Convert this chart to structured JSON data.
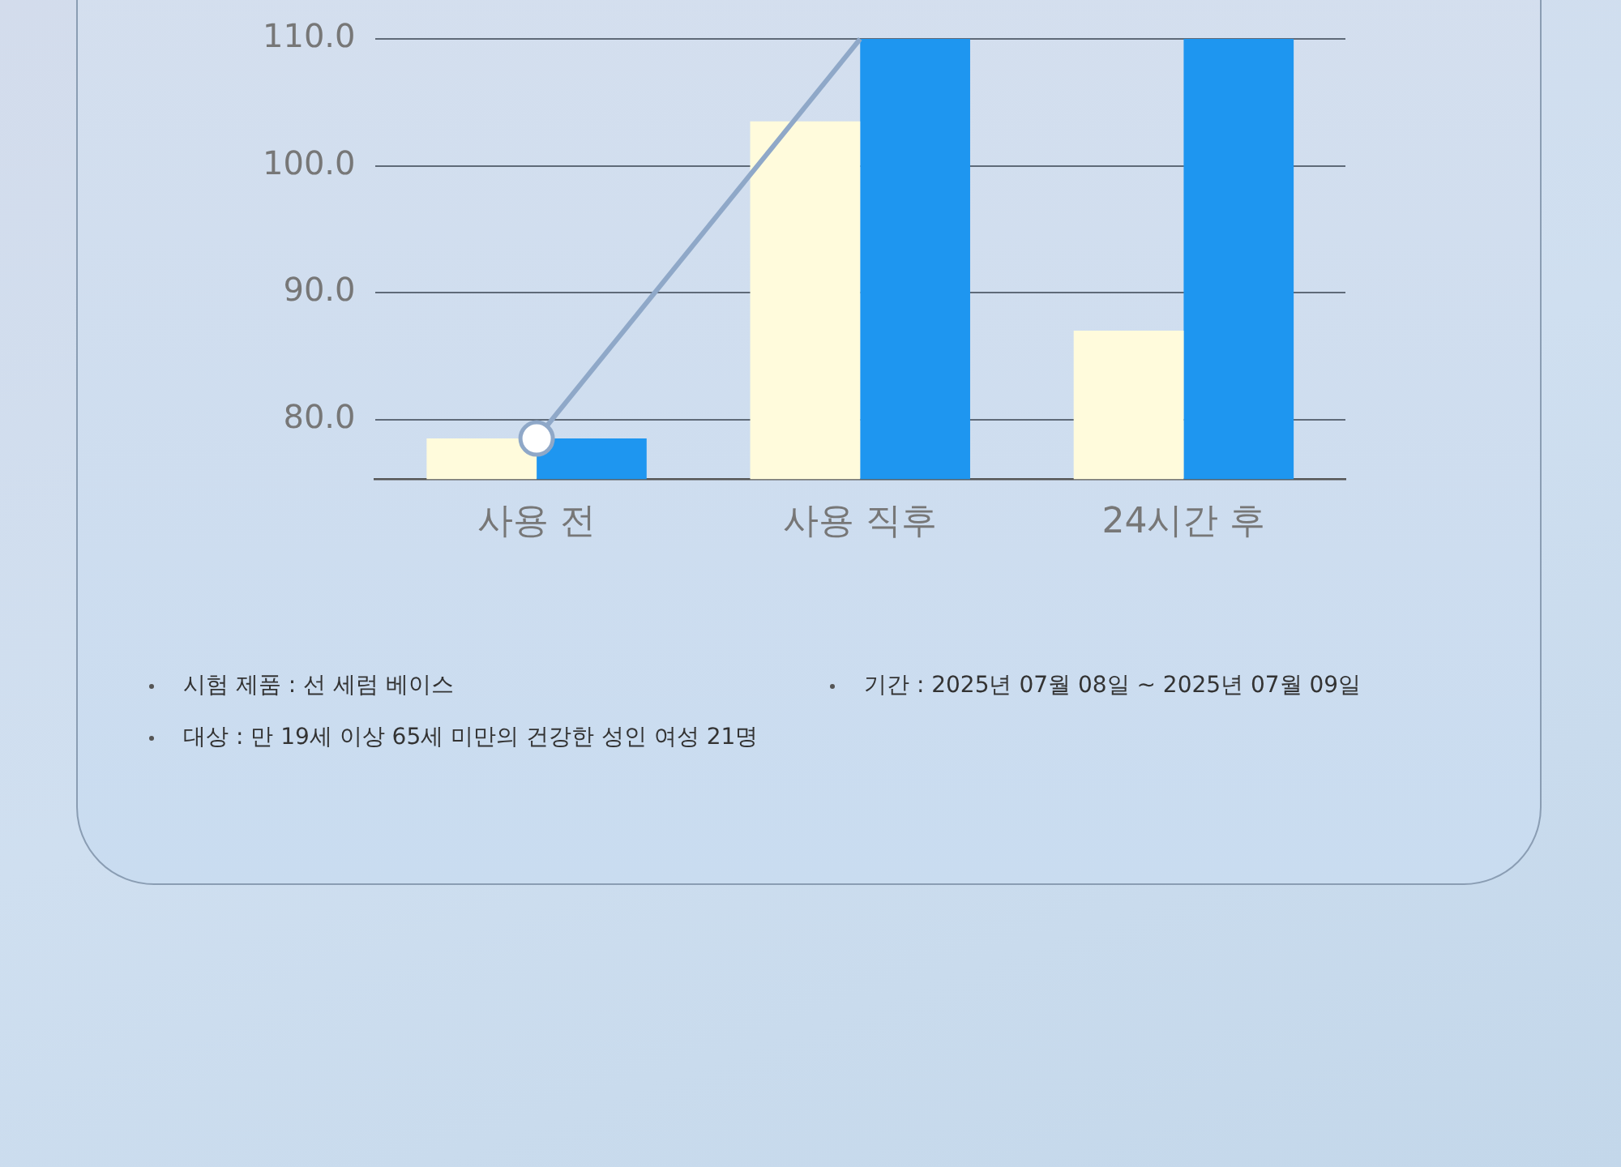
{
  "chart_data": {
    "type": "bar",
    "categories": [
      "사용 전",
      "사용 직후",
      "24시간 후"
    ],
    "series": [
      {
        "color": "#fffbdc",
        "values": [
          78.5,
          103.5,
          87.0
        ]
      },
      {
        "color": "#1e96f0",
        "values": [
          78.5,
          110.0,
          110.0
        ]
      },
      {
        "type": "line",
        "color": "#8fa8c8",
        "values": [
          78.5,
          110.0,
          null
        ]
      }
    ],
    "ylim": [
      75.3,
      110.0
    ],
    "yticks": [
      {
        "value": 80,
        "label": "80.0"
      },
      {
        "value": 90,
        "label": "90.0"
      },
      {
        "value": 100,
        "label": "100.0"
      },
      {
        "value": 110,
        "label": "110.0"
      }
    ],
    "grid": "y",
    "legend": false,
    "marker": "circle",
    "annotations": [
      "시험 제품 : 선 세럼 베이스",
      "기간 : 2025년 07월 08일 ~ 2025년 07월 09일",
      "대상 : 만 19세 이상 65세 미만의 건강한 성인 여성 21명"
    ]
  }
}
